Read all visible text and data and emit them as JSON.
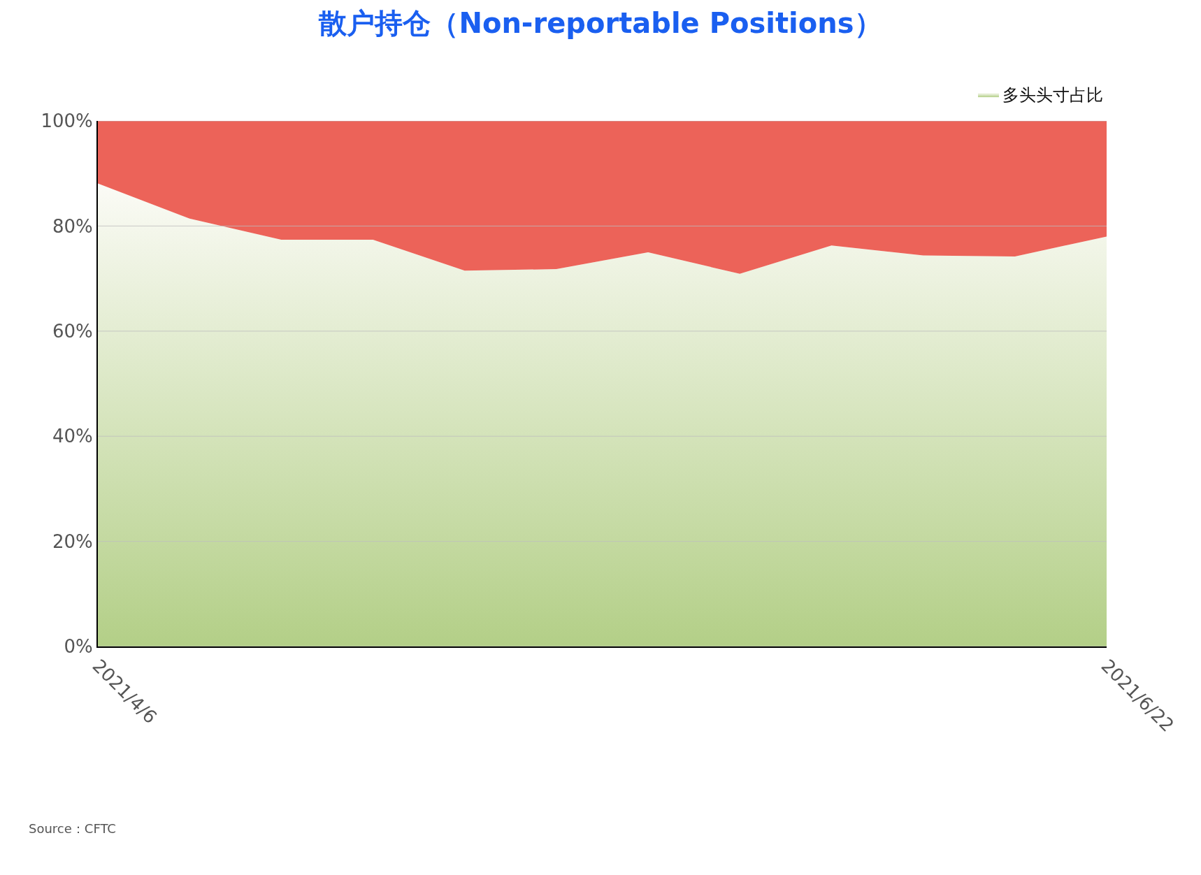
{
  "chart_data": {
    "type": "area",
    "title": "散户持仓（Non-reportable Positions）",
    "categories": [
      "2021/4/6",
      null,
      null,
      null,
      null,
      null,
      null,
      null,
      null,
      null,
      null,
      "2021/6/22"
    ],
    "stacked": true,
    "series": [
      {
        "name": "多头头寸占比",
        "color": "#b3cf87",
        "values": [
          88.1,
          81.4,
          77.4,
          77.4,
          71.5,
          71.8,
          75.0,
          70.9,
          76.3,
          74.4,
          74.2,
          78.0
        ]
      },
      {
        "color": "#ec6359",
        "values": [
          11.9,
          18.6,
          22.6,
          22.6,
          28.5,
          28.2,
          25.0,
          29.1,
          23.7,
          25.6,
          25.8,
          22.0
        ]
      }
    ],
    "ylim": [
      0,
      100
    ],
    "yticks": [
      {
        "value": 0,
        "label": "0%"
      },
      {
        "value": 20,
        "label": "20%"
      },
      {
        "value": 40,
        "label": "40%"
      },
      {
        "value": 60,
        "label": "60%"
      },
      {
        "value": 80,
        "label": "80%"
      },
      {
        "value": 100,
        "label": "100%"
      }
    ],
    "grid": "y",
    "legend": "top right",
    "annotations": [
      "Source：CFTC"
    ]
  }
}
